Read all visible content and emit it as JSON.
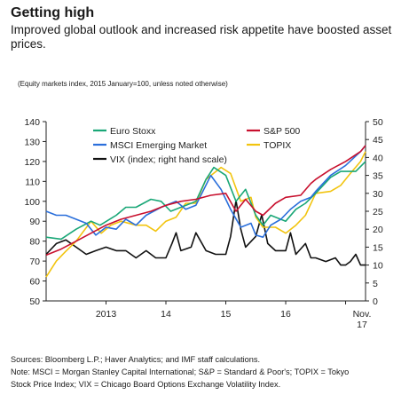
{
  "header": {
    "title": "Getting high",
    "subtitle": "Improved global outlook and increased risk appetite have boosted asset prices."
  },
  "chart_note": "(Equity markets index, 2015 January=100, unless noted otherwise)",
  "footer": {
    "sources": "Sources: Bloomberg L.P.; Haver Analytics; and IMF staff calculations.",
    "note_line1": "Note: MSCI = Morgan Stanley Capital International; S&P = Standard & Poor's; TOPIX = Tokyo",
    "note_line2": "Stock Price Index; VIX = Chicago Board Options Exchange Volatility Index."
  },
  "chart_data": {
    "type": "line",
    "title": "",
    "xlabel": "",
    "ylabel": "",
    "x_range": [
      2012.5,
      2017.833
    ],
    "x_ticks": [
      {
        "label": "2013",
        "x": 2013.0
      },
      {
        "label": "14",
        "x": 2014.0
      },
      {
        "label": "15",
        "x": 2015.0
      },
      {
        "label": "16",
        "x": 2016.0
      }
    ],
    "x_end_label": [
      "Nov.",
      "17"
    ],
    "y_left": {
      "min": 50,
      "max": 140,
      "step": 10,
      "ticks": [
        "50",
        "60",
        "70",
        "80",
        "90",
        "100",
        "110",
        "120",
        "130",
        "140"
      ]
    },
    "y_right": {
      "min": 0,
      "max": 50,
      "step": 5,
      "ticks": [
        "0",
        "5",
        "10",
        "15",
        "20",
        "25",
        "30",
        "35",
        "40",
        "45",
        "50"
      ]
    },
    "grid": false,
    "legend": [
      {
        "name": "Euro Stoxx",
        "color": "#1aa777",
        "style": "line"
      },
      {
        "name": "S&P 500",
        "color": "#c8102e",
        "style": "line"
      },
      {
        "name": "MSCI Emerging Market",
        "color": "#2a6fdb",
        "style": "line"
      },
      {
        "name": "TOPIX",
        "color": "#f2c40f",
        "style": "line"
      },
      {
        "name": "VIX (index; right hand scale)",
        "color": "#111111",
        "style": "line"
      }
    ],
    "series": [
      {
        "name": "S&P 500",
        "color": "#c8102e",
        "axis": "left",
        "points": [
          [
            2012.5,
            73
          ],
          [
            2012.75,
            76
          ],
          [
            2013.0,
            80
          ],
          [
            2013.25,
            84
          ],
          [
            2013.5,
            88
          ],
          [
            2013.75,
            91
          ],
          [
            2014.0,
            93
          ],
          [
            2014.25,
            95
          ],
          [
            2014.5,
            98
          ],
          [
            2014.75,
            100
          ],
          [
            2015.0,
            101
          ],
          [
            2015.25,
            103
          ],
          [
            2015.5,
            104
          ],
          [
            2015.67,
            95
          ],
          [
            2015.83,
            101
          ],
          [
            2016.0,
            95
          ],
          [
            2016.12,
            93
          ],
          [
            2016.33,
            99
          ],
          [
            2016.5,
            102
          ],
          [
            2016.75,
            103
          ],
          [
            2016.92,
            109
          ],
          [
            2017.0,
            111
          ],
          [
            2017.25,
            116
          ],
          [
            2017.5,
            120
          ],
          [
            2017.75,
            125
          ],
          [
            2017.833,
            128
          ]
        ]
      },
      {
        "name": "Euro Stoxx",
        "color": "#1aa777",
        "axis": "left",
        "points": [
          [
            2012.5,
            82
          ],
          [
            2012.75,
            81
          ],
          [
            2013.0,
            86
          ],
          [
            2013.25,
            90
          ],
          [
            2013.4,
            88
          ],
          [
            2013.67,
            93
          ],
          [
            2013.83,
            97
          ],
          [
            2014.0,
            97
          ],
          [
            2014.25,
            101
          ],
          [
            2014.42,
            100
          ],
          [
            2014.58,
            95
          ],
          [
            2014.75,
            97
          ],
          [
            2014.92,
            99
          ],
          [
            2015.0,
            100
          ],
          [
            2015.17,
            111
          ],
          [
            2015.3,
            117
          ],
          [
            2015.5,
            113
          ],
          [
            2015.67,
            100
          ],
          [
            2015.83,
            106
          ],
          [
            2016.0,
            93
          ],
          [
            2016.12,
            88
          ],
          [
            2016.25,
            93
          ],
          [
            2016.5,
            90
          ],
          [
            2016.67,
            96
          ],
          [
            2016.83,
            99
          ],
          [
            2017.0,
            104
          ],
          [
            2017.25,
            112
          ],
          [
            2017.42,
            115
          ],
          [
            2017.67,
            115
          ],
          [
            2017.833,
            120
          ]
        ]
      },
      {
        "name": "MSCI Emerging Market",
        "color": "#2a6fdb",
        "axis": "left",
        "points": [
          [
            2012.5,
            95
          ],
          [
            2012.67,
            93
          ],
          [
            2012.83,
            93
          ],
          [
            2013.0,
            91
          ],
          [
            2013.17,
            89
          ],
          [
            2013.33,
            83
          ],
          [
            2013.5,
            87
          ],
          [
            2013.67,
            86
          ],
          [
            2013.83,
            91
          ],
          [
            2014.0,
            88
          ],
          [
            2014.17,
            93
          ],
          [
            2014.42,
            97
          ],
          [
            2014.67,
            100
          ],
          [
            2014.83,
            96
          ],
          [
            2015.0,
            98
          ],
          [
            2015.25,
            113
          ],
          [
            2015.42,
            106
          ],
          [
            2015.58,
            96
          ],
          [
            2015.75,
            87
          ],
          [
            2015.92,
            89
          ],
          [
            2016.0,
            83
          ],
          [
            2016.12,
            82
          ],
          [
            2016.25,
            88
          ],
          [
            2016.42,
            91
          ],
          [
            2016.58,
            96
          ],
          [
            2016.75,
            100
          ],
          [
            2016.92,
            102
          ],
          [
            2017.0,
            105
          ],
          [
            2017.25,
            113
          ],
          [
            2017.5,
            118
          ],
          [
            2017.75,
            125
          ],
          [
            2017.833,
            128
          ]
        ]
      },
      {
        "name": "TOPIX",
        "color": "#f2c40f",
        "axis": "left",
        "points": [
          [
            2012.5,
            62
          ],
          [
            2012.67,
            70
          ],
          [
            2012.83,
            75
          ],
          [
            2013.0,
            80
          ],
          [
            2013.25,
            90
          ],
          [
            2013.42,
            84
          ],
          [
            2013.58,
            88
          ],
          [
            2013.75,
            90
          ],
          [
            2014.0,
            88
          ],
          [
            2014.17,
            88
          ],
          [
            2014.33,
            85
          ],
          [
            2014.5,
            90
          ],
          [
            2014.67,
            92
          ],
          [
            2014.83,
            99
          ],
          [
            2015.0,
            99
          ],
          [
            2015.17,
            111
          ],
          [
            2015.42,
            117
          ],
          [
            2015.58,
            114
          ],
          [
            2015.75,
            100
          ],
          [
            2015.92,
            102
          ],
          [
            2016.0,
            92
          ],
          [
            2016.12,
            87
          ],
          [
            2016.33,
            87
          ],
          [
            2016.5,
            84
          ],
          [
            2016.67,
            88
          ],
          [
            2016.83,
            93
          ],
          [
            2017.0,
            104
          ],
          [
            2017.25,
            105
          ],
          [
            2017.42,
            108
          ],
          [
            2017.58,
            114
          ],
          [
            2017.75,
            120
          ],
          [
            2017.833,
            125
          ]
        ]
      },
      {
        "name": "VIX (index; right hand scale)",
        "color": "#111111",
        "axis": "right",
        "points": [
          [
            2012.5,
            13
          ],
          [
            2012.67,
            16
          ],
          [
            2012.83,
            17
          ],
          [
            2013.0,
            15
          ],
          [
            2013.17,
            13
          ],
          [
            2013.33,
            14
          ],
          [
            2013.5,
            15
          ],
          [
            2013.67,
            14
          ],
          [
            2013.83,
            14
          ],
          [
            2014.0,
            12
          ],
          [
            2014.17,
            14
          ],
          [
            2014.33,
            12
          ],
          [
            2014.5,
            12
          ],
          [
            2014.6,
            16
          ],
          [
            2014.67,
            19
          ],
          [
            2014.75,
            14
          ],
          [
            2014.92,
            15
          ],
          [
            2015.0,
            19
          ],
          [
            2015.17,
            14
          ],
          [
            2015.33,
            13
          ],
          [
            2015.5,
            13
          ],
          [
            2015.58,
            18
          ],
          [
            2015.67,
            28
          ],
          [
            2015.75,
            20
          ],
          [
            2015.83,
            15
          ],
          [
            2016.0,
            18
          ],
          [
            2016.1,
            24
          ],
          [
            2016.2,
            16
          ],
          [
            2016.33,
            14
          ],
          [
            2016.5,
            14
          ],
          [
            2016.58,
            19
          ],
          [
            2016.67,
            13
          ],
          [
            2016.83,
            16
          ],
          [
            2016.92,
            12
          ],
          [
            2017.0,
            12
          ],
          [
            2017.17,
            11
          ],
          [
            2017.33,
            12
          ],
          [
            2017.42,
            10
          ],
          [
            2017.5,
            10
          ],
          [
            2017.58,
            11
          ],
          [
            2017.67,
            13
          ],
          [
            2017.75,
            10
          ],
          [
            2017.833,
            10
          ]
        ]
      }
    ]
  }
}
